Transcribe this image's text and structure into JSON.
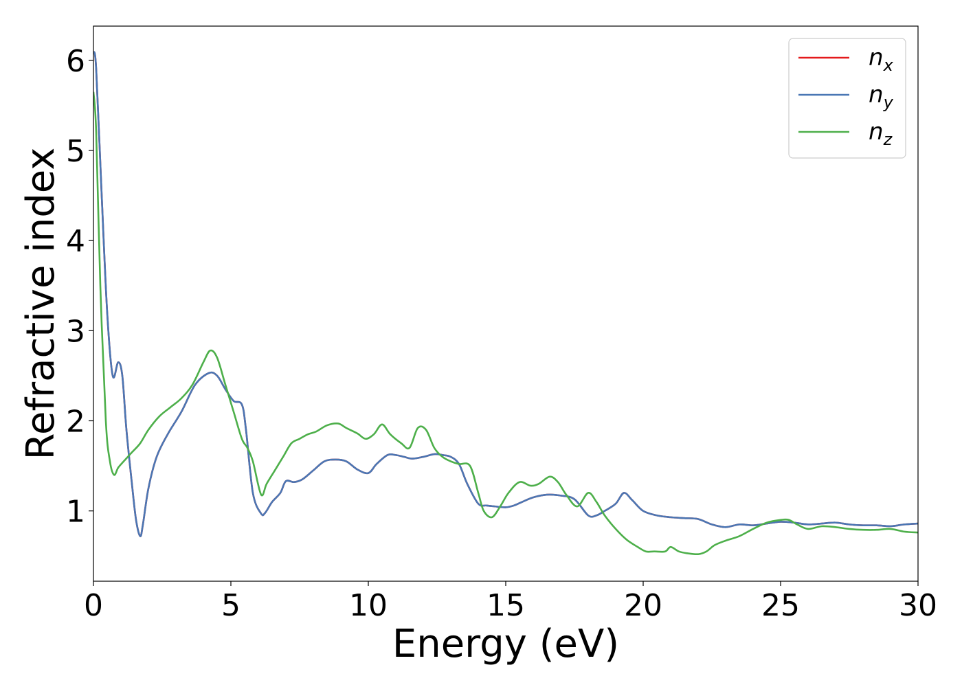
{
  "chart_data": {
    "type": "line",
    "title": "",
    "xlabel": "Energy (eV)",
    "ylabel": "Refractive index",
    "xlim": [
      0,
      30
    ],
    "ylim": [
      0.22,
      6.38
    ],
    "xticks": [
      {
        "value": 0,
        "label": "0"
      },
      {
        "value": 5,
        "label": "5"
      },
      {
        "value": 10,
        "label": "10"
      },
      {
        "value": 15,
        "label": "15"
      },
      {
        "value": 20,
        "label": "20"
      },
      {
        "value": 25,
        "label": "25"
      },
      {
        "value": 30,
        "label": "30"
      }
    ],
    "yticks": [
      {
        "value": 1,
        "label": "1"
      },
      {
        "value": 2,
        "label": "2"
      },
      {
        "value": 3,
        "label": "3"
      },
      {
        "value": 4,
        "label": "4"
      },
      {
        "value": 5,
        "label": "5"
      },
      {
        "value": 6,
        "label": "6"
      }
    ],
    "grid": false,
    "legend_position": "top-right",
    "series": [
      {
        "name": "n",
        "subscript": "x",
        "color": "#e41a1c",
        "x": [
          0,
          0.1,
          0.3,
          0.5,
          0.7,
          0.9,
          1.05,
          1.2,
          1.4,
          1.55,
          1.7,
          1.8,
          2.0,
          2.3,
          2.7,
          3.2,
          3.7,
          4.2,
          4.5,
          4.8,
          5.1,
          5.4,
          5.55,
          5.8,
          6.1,
          6.25,
          6.5,
          6.8,
          7.0,
          7.3,
          7.6,
          8.0,
          8.4,
          8.8,
          9.2,
          9.6,
          10.0,
          10.3,
          10.7,
          11.0,
          11.3,
          11.6,
          12.0,
          12.4,
          12.7,
          13.0,
          13.3,
          13.6,
          14.0,
          14.3,
          14.6,
          15.0,
          15.3,
          15.6,
          16.0,
          16.5,
          17.0,
          17.5,
          18.0,
          18.3,
          18.6,
          19.0,
          19.3,
          19.6,
          20.0,
          20.5,
          21.0,
          21.5,
          22.0,
          22.5,
          23.0,
          23.5,
          24.0,
          24.5,
          25.0,
          25.5,
          26.0,
          26.5,
          27.0,
          27.5,
          28.0,
          28.5,
          29.0,
          29.5,
          30.0
        ],
        "y": [
          6.1,
          5.9,
          4.5,
          3.2,
          2.5,
          2.65,
          2.5,
          1.9,
          1.3,
          0.9,
          0.72,
          0.85,
          1.25,
          1.6,
          1.85,
          2.1,
          2.4,
          2.53,
          2.5,
          2.35,
          2.22,
          2.18,
          1.9,
          1.2,
          0.97,
          0.98,
          1.1,
          1.2,
          1.33,
          1.32,
          1.35,
          1.45,
          1.55,
          1.57,
          1.55,
          1.46,
          1.42,
          1.52,
          1.62,
          1.62,
          1.6,
          1.58,
          1.6,
          1.63,
          1.62,
          1.6,
          1.52,
          1.3,
          1.08,
          1.06,
          1.05,
          1.04,
          1.06,
          1.1,
          1.15,
          1.18,
          1.17,
          1.13,
          0.95,
          0.95,
          1.0,
          1.08,
          1.2,
          1.12,
          1.0,
          0.95,
          0.93,
          0.92,
          0.91,
          0.85,
          0.82,
          0.85,
          0.84,
          0.86,
          0.88,
          0.87,
          0.85,
          0.86,
          0.87,
          0.85,
          0.84,
          0.84,
          0.83,
          0.85,
          0.86
        ]
      },
      {
        "name": "n",
        "subscript": "y",
        "color": "#4a77b4",
        "x": [
          0,
          0.1,
          0.3,
          0.5,
          0.7,
          0.9,
          1.05,
          1.2,
          1.4,
          1.55,
          1.7,
          1.8,
          2.0,
          2.3,
          2.7,
          3.2,
          3.7,
          4.2,
          4.5,
          4.8,
          5.1,
          5.4,
          5.55,
          5.8,
          6.1,
          6.25,
          6.5,
          6.8,
          7.0,
          7.3,
          7.6,
          8.0,
          8.4,
          8.8,
          9.2,
          9.6,
          10.0,
          10.3,
          10.7,
          11.0,
          11.3,
          11.6,
          12.0,
          12.4,
          12.7,
          13.0,
          13.3,
          13.6,
          14.0,
          14.3,
          14.6,
          15.0,
          15.3,
          15.6,
          16.0,
          16.5,
          17.0,
          17.5,
          18.0,
          18.3,
          18.6,
          19.0,
          19.3,
          19.6,
          20.0,
          20.5,
          21.0,
          21.5,
          22.0,
          22.5,
          23.0,
          23.5,
          24.0,
          24.5,
          25.0,
          25.5,
          26.0,
          26.5,
          27.0,
          27.5,
          28.0,
          28.5,
          29.0,
          29.5,
          30.0
        ],
        "y": [
          6.1,
          5.9,
          4.5,
          3.2,
          2.5,
          2.65,
          2.5,
          1.9,
          1.3,
          0.9,
          0.72,
          0.85,
          1.25,
          1.6,
          1.85,
          2.1,
          2.4,
          2.53,
          2.5,
          2.35,
          2.22,
          2.18,
          1.9,
          1.2,
          0.97,
          0.98,
          1.1,
          1.2,
          1.33,
          1.32,
          1.35,
          1.45,
          1.55,
          1.57,
          1.55,
          1.46,
          1.42,
          1.52,
          1.62,
          1.62,
          1.6,
          1.58,
          1.6,
          1.63,
          1.62,
          1.6,
          1.52,
          1.3,
          1.08,
          1.06,
          1.05,
          1.04,
          1.06,
          1.1,
          1.15,
          1.18,
          1.17,
          1.13,
          0.95,
          0.95,
          1.0,
          1.08,
          1.2,
          1.12,
          1.0,
          0.95,
          0.93,
          0.92,
          0.91,
          0.85,
          0.82,
          0.85,
          0.84,
          0.86,
          0.88,
          0.87,
          0.85,
          0.86,
          0.87,
          0.85,
          0.84,
          0.84,
          0.83,
          0.85,
          0.86
        ]
      },
      {
        "name": "n",
        "subscript": "z",
        "color": "#4daf4a",
        "x": [
          0,
          0.1,
          0.25,
          0.45,
          0.6,
          0.75,
          0.9,
          1.1,
          1.4,
          1.7,
          2.0,
          2.4,
          2.8,
          3.2,
          3.6,
          4.0,
          4.25,
          4.5,
          4.8,
          5.1,
          5.4,
          5.6,
          5.8,
          6.1,
          6.3,
          6.6,
          6.9,
          7.2,
          7.5,
          7.8,
          8.1,
          8.5,
          8.9,
          9.2,
          9.6,
          9.9,
          10.2,
          10.5,
          10.8,
          11.2,
          11.5,
          11.8,
          12.1,
          12.4,
          12.7,
          13.0,
          13.3,
          13.7,
          14.0,
          14.2,
          14.5,
          14.8,
          15.1,
          15.5,
          15.9,
          16.2,
          16.6,
          16.9,
          17.2,
          17.6,
          18.0,
          18.3,
          18.6,
          19.0,
          19.4,
          19.8,
          20.1,
          20.4,
          20.8,
          21.0,
          21.3,
          21.6,
          22.0,
          22.3,
          22.6,
          23.0,
          23.5,
          24.0,
          24.5,
          25.0,
          25.3,
          25.6,
          26.0,
          26.5,
          27.0,
          27.5,
          28.0,
          28.5,
          29.0,
          29.5,
          30.0
        ],
        "y": [
          5.65,
          5.2,
          3.5,
          2.0,
          1.55,
          1.4,
          1.48,
          1.55,
          1.65,
          1.75,
          1.9,
          2.05,
          2.15,
          2.25,
          2.4,
          2.65,
          2.78,
          2.7,
          2.4,
          2.1,
          1.8,
          1.7,
          1.55,
          1.18,
          1.3,
          1.45,
          1.6,
          1.75,
          1.8,
          1.85,
          1.88,
          1.95,
          1.97,
          1.92,
          1.86,
          1.8,
          1.85,
          1.96,
          1.85,
          1.75,
          1.7,
          1.92,
          1.9,
          1.7,
          1.6,
          1.55,
          1.52,
          1.5,
          1.2,
          1.0,
          0.93,
          1.05,
          1.2,
          1.32,
          1.28,
          1.3,
          1.38,
          1.32,
          1.18,
          1.05,
          1.2,
          1.1,
          0.95,
          0.8,
          0.68,
          0.6,
          0.55,
          0.55,
          0.55,
          0.6,
          0.55,
          0.53,
          0.52,
          0.55,
          0.62,
          0.67,
          0.72,
          0.8,
          0.87,
          0.9,
          0.9,
          0.85,
          0.8,
          0.83,
          0.82,
          0.8,
          0.79,
          0.79,
          0.8,
          0.77,
          0.76
        ]
      }
    ]
  }
}
